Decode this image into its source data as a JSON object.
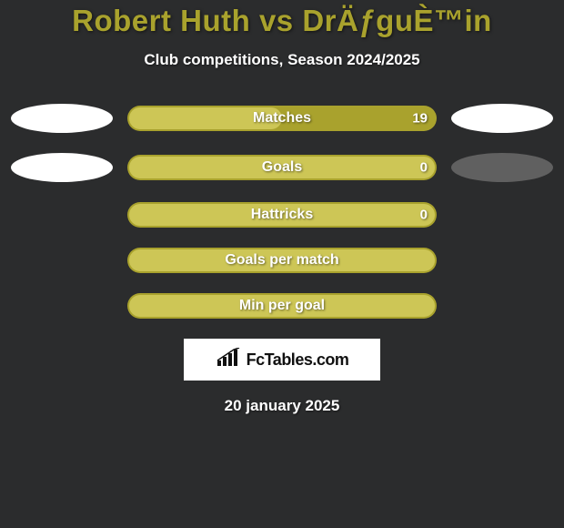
{
  "title": {
    "text": "Robert Huth vs DrÄƒguÈ™in",
    "color": "#a9a22d"
  },
  "subtitle": "Club competitions, Season 2024/2025",
  "background_color": "#2b2c2d",
  "bar_colors": {
    "outer": "#a9a22d",
    "inner": "#cdc656"
  },
  "ellipses": {
    "row0": {
      "left": "white",
      "right": "white"
    },
    "row1": {
      "left": "white",
      "right": "gray"
    }
  },
  "stats": [
    {
      "label": "Matches",
      "value_left": "",
      "value_right": "19",
      "inner_left_pct": 1,
      "inner_right_pct": 0
    },
    {
      "label": "Goals",
      "value_left": "",
      "value_right": "0",
      "inner_left_pct": 1,
      "inner_right_pct": 1
    },
    {
      "label": "Hattricks",
      "value_left": "",
      "value_right": "0",
      "inner_left_pct": 1,
      "inner_right_pct": 1
    },
    {
      "label": "Goals per match",
      "value_left": "",
      "value_right": "",
      "inner_left_pct": 1,
      "inner_right_pct": 1
    },
    {
      "label": "Min per goal",
      "value_left": "",
      "value_right": "",
      "inner_left_pct": 1,
      "inner_right_pct": 1
    }
  ],
  "logo_text": "FcTables.com",
  "date": "20 january 2025"
}
